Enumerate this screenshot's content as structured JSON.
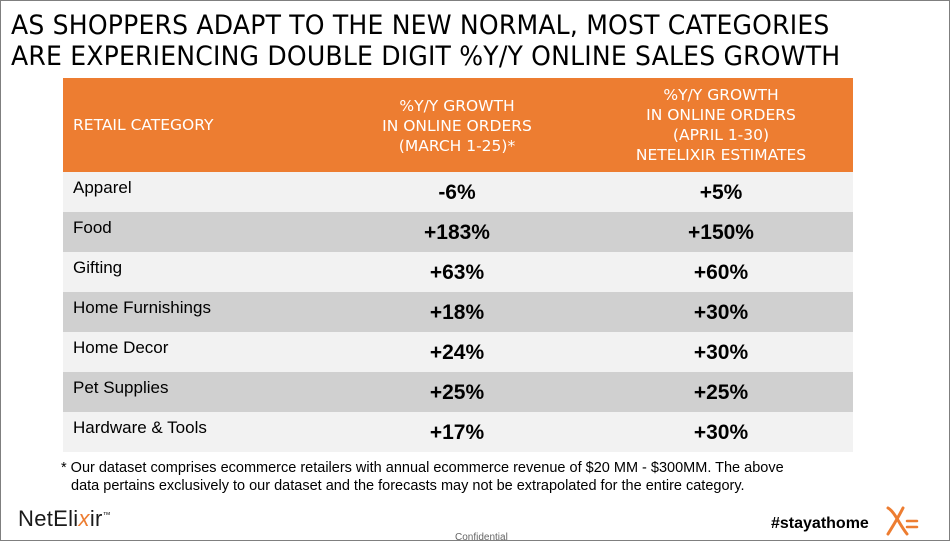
{
  "title": {
    "line1": "AS SHOPPERS ADAPT TO THE NEW NORMAL, MOST CATEGORIES",
    "line2": "ARE EXPERIENCING DOUBLE DIGIT %Y/Y ONLINE SALES GROWTH"
  },
  "table": {
    "headers": {
      "category": "RETAIL CATEGORY",
      "march": [
        "%Y/Y GROWTH",
        "IN ONLINE ORDERS",
        "(MARCH 1-25)*"
      ],
      "april": [
        "%Y/Y GROWTH",
        "IN ONLINE ORDERS",
        "(APRIL 1-30)",
        "NETELIXIR ESTIMATES"
      ]
    },
    "rows": [
      {
        "category": "Apparel",
        "march": "-6%",
        "april": "+5%"
      },
      {
        "category": "Food",
        "march": "+183%",
        "april": "+150%"
      },
      {
        "category": "Gifting",
        "march": "+63%",
        "april": "+60%"
      },
      {
        "category": "Home Furnishings",
        "march": "+18%",
        "april": "+30%"
      },
      {
        "category": "Home Decor",
        "march": "+24%",
        "april": "+30%"
      },
      {
        "category": "Pet Supplies",
        "march": "+25%",
        "april": "+25%"
      },
      {
        "category": "Hardware & Tools",
        "march": "+17%",
        "april": "+30%"
      }
    ]
  },
  "footnote": {
    "line1": "* Our dataset comprises ecommerce retailers with annual ecommerce revenue of $20 MM - $300MM. The above",
    "line2": "data pertains exclusively to our dataset and the forecasts may not be extrapolated for the entire category."
  },
  "footer": {
    "logo_pre": "NetEli",
    "logo_x": "x",
    "logo_post": "ir",
    "logo_tm": "™",
    "confidential": "Confidential",
    "hashtag": "#stayathome"
  },
  "colors": {
    "header_bg": "#ed7d31",
    "row_light": "#f2f2f2",
    "row_dark": "#d0d0d0",
    "accent": "#ed7d31"
  }
}
